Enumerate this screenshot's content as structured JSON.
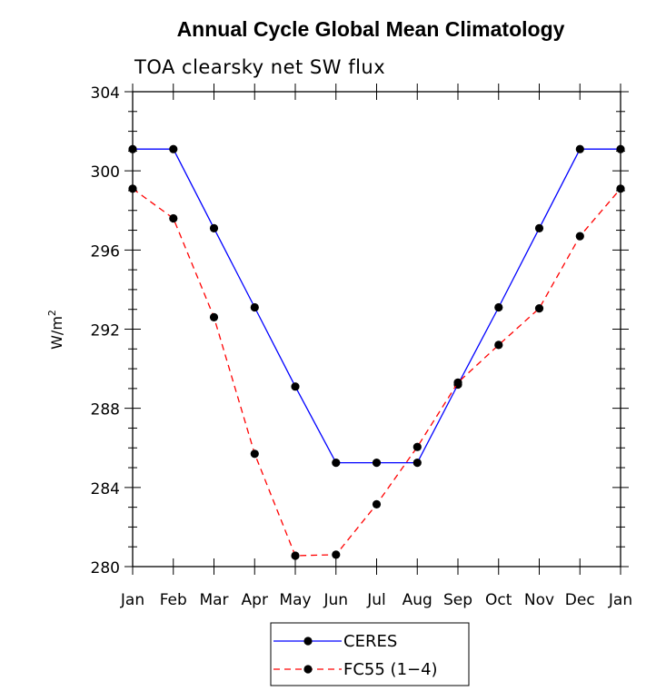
{
  "chart_data": {
    "type": "line",
    "title": "Annual Cycle Global Mean Climatology",
    "subtitle": "TOA clearsky net SW flux",
    "ylabel": "W/m",
    "ylabel_sup": "2",
    "xlabel": "",
    "categories": [
      "Jan",
      "Feb",
      "Mar",
      "Apr",
      "May",
      "Jun",
      "Jul",
      "Aug",
      "Sep",
      "Oct",
      "Nov",
      "Dec",
      "Jan"
    ],
    "ylim": [
      280,
      304
    ],
    "yticks": [
      280,
      284,
      288,
      292,
      296,
      300,
      304
    ],
    "series": [
      {
        "name": "CERES",
        "color": "#0000ff",
        "dash": "solid",
        "values": [
          301.1,
          301.1,
          297.1,
          293.1,
          289.1,
          285.25,
          285.25,
          285.25,
          289.2,
          293.1,
          297.1,
          301.1,
          301.1
        ]
      },
      {
        "name": "FC55 (1-4)",
        "color": "#ff0000",
        "dash": "dashed",
        "values": [
          299.1,
          297.6,
          292.6,
          285.7,
          280.55,
          280.6,
          283.15,
          286.05,
          289.3,
          291.2,
          293.05,
          296.7,
          299.1
        ]
      }
    ],
    "legend": {
      "position": "bottom-center",
      "entries": [
        "CERES",
        "FC55 (1−4)"
      ]
    },
    "grid": false
  }
}
